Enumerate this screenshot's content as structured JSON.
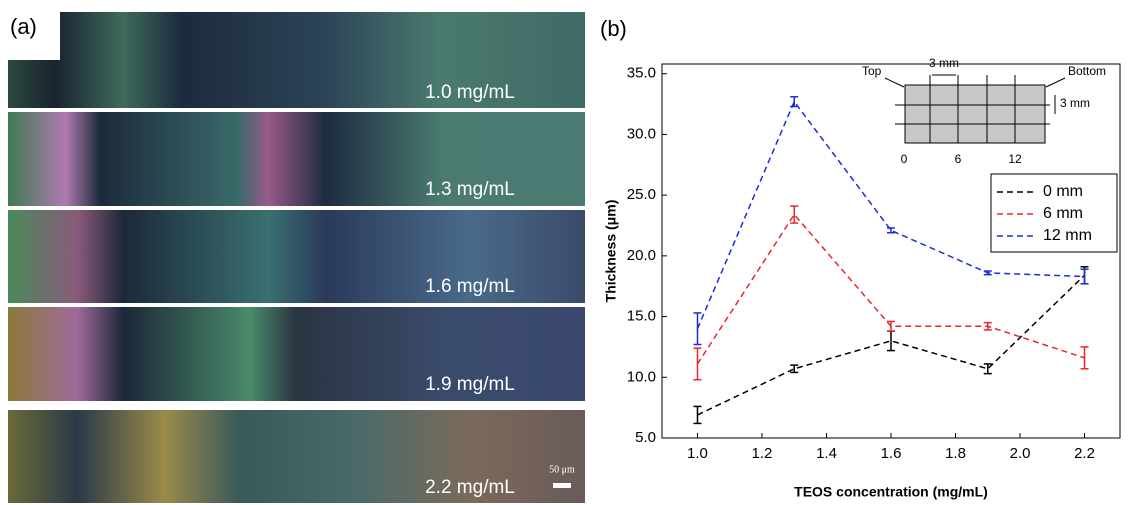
{
  "panel_a": {
    "label": "(a)",
    "strips": [
      "1.0 mg/mL",
      "1.3 mg/mL",
      "1.6 mg/mL",
      "1.9 mg/mL",
      "2.2 mg/mL"
    ],
    "scale_bar": "50 μm"
  },
  "panel_b_label": "(b)",
  "inset": {
    "top": "Top",
    "bottom": "Bottom",
    "spacing_x": "3 mm",
    "spacing_y": "3 mm",
    "positions": [
      "0",
      "6",
      "12"
    ]
  },
  "chart_data": {
    "type": "line",
    "x_label": "TEOS concentration (mg/mL)",
    "y_label": "Thickness (μm)",
    "x": [
      1.0,
      1.3,
      1.6,
      1.9,
      2.2
    ],
    "series": [
      {
        "name": "0 mm",
        "color": "#000000",
        "values": [
          6.9,
          10.7,
          13.0,
          10.7,
          18.4
        ],
        "errors": [
          0.7,
          0.3,
          0.8,
          0.4,
          0.7
        ]
      },
      {
        "name": "6 mm",
        "color": "#e8262a",
        "values": [
          11.1,
          23.4,
          14.2,
          14.2,
          11.6
        ],
        "errors": [
          1.3,
          0.7,
          0.4,
          0.3,
          0.9
        ]
      },
      {
        "name": "12 mm",
        "color": "#1d2bdb",
        "values": [
          14.0,
          32.7,
          22.1,
          18.6,
          18.3
        ],
        "errors": [
          1.3,
          0.4,
          0.2,
          0.15,
          0.6
        ]
      }
    ],
    "xlim": [
      0.89,
      2.31
    ],
    "ylim": [
      5,
      35.8
    ],
    "xticks": [
      {
        "value": 1,
        "label": "1.0"
      },
      1.2,
      1.4,
      1.6,
      1.8,
      {
        "value": 2,
        "label": "2.0"
      },
      2.2
    ],
    "yticks": [
      {
        "value": 5,
        "label": "5.0"
      },
      {
        "value": 10,
        "label": "10.0"
      },
      {
        "value": 15,
        "label": "15.0"
      },
      {
        "value": 20,
        "label": "20.0"
      },
      {
        "value": 25,
        "label": "25.0"
      },
      {
        "value": 30,
        "label": "30.0"
      },
      {
        "value": 35,
        "label": "35.0"
      }
    ],
    "line_style": "dashed",
    "legend": "right"
  }
}
